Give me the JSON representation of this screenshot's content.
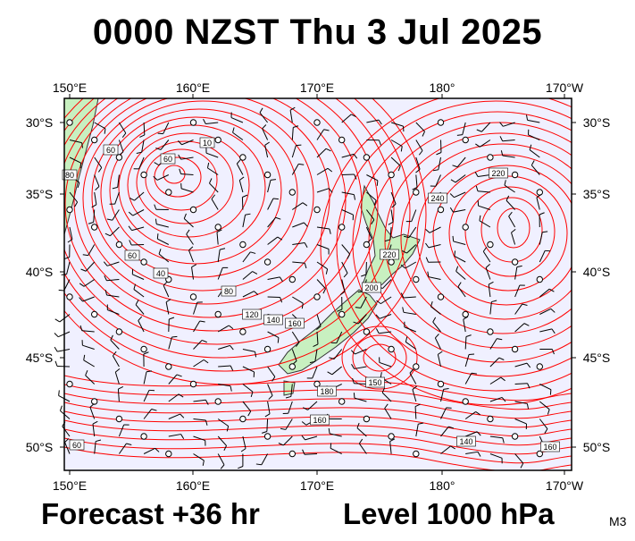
{
  "header": {
    "title": "0000 NZST Thu 3 Jul 2025"
  },
  "footer": {
    "forecast": "Forecast +36 hr",
    "level": "Level 1000 hPa",
    "tag": "M3"
  },
  "map": {
    "lon_labels": [
      "150°E",
      "160°E",
      "170°E",
      "180°",
      "170°W"
    ],
    "lat_labels": [
      "30°S",
      "35°S",
      "40°S",
      "45°S",
      "50°S"
    ],
    "contour_labels": [
      "60",
      "60",
      "10",
      "60",
      "40",
      "80",
      "120",
      "140",
      "160",
      "180",
      "200",
      "220",
      "240",
      "220",
      "160",
      "140",
      "160",
      "150",
      "60",
      "80"
    ],
    "colors": {
      "ocean": "#f0f0ff",
      "land": "#c8f0c0",
      "contour": "#ff0000",
      "coast": "#333333",
      "barb": "#000000"
    }
  }
}
